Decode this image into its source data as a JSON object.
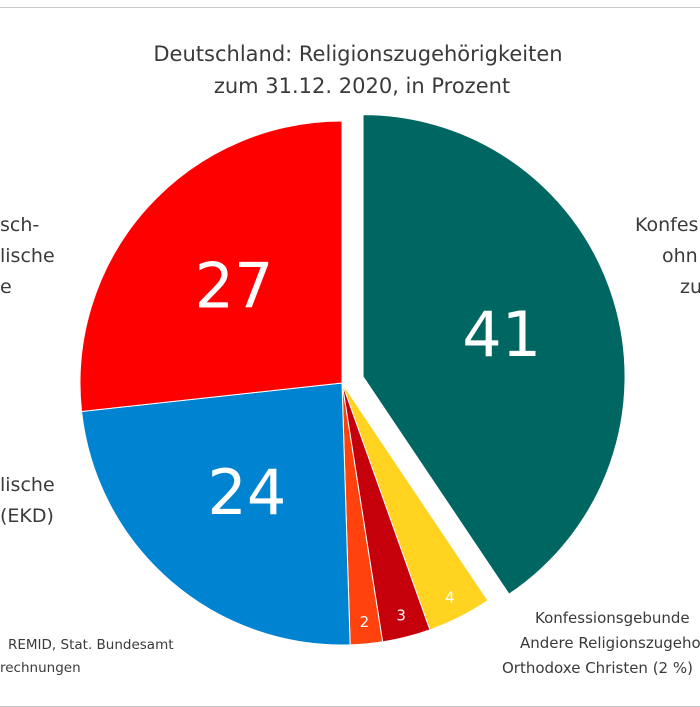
{
  "chart_data": {
    "type": "pie",
    "title": [
      "Deutschland: Religionszugehörigkeiten",
      "zum 31.12. 2020, in Prozent"
    ],
    "slices": [
      {
        "value": 41,
        "label": "41",
        "color": "#006661",
        "exploded": true
      },
      {
        "value": 4,
        "label": "4",
        "color": "#ffd320"
      },
      {
        "value": 3,
        "label": "3",
        "color": "#c5000b"
      },
      {
        "value": 2,
        "label": "2",
        "color": "#ff420e"
      },
      {
        "value": 24,
        "label": "24",
        "color": "#0084d1"
      },
      {
        "value": 27,
        "label": "27",
        "color": "#ff0000"
      }
    ],
    "outer_labels": {
      "right_top": [
        "Konfes",
        "ohn",
        "zu"
      ],
      "left_top": [
        "sch-",
        "lische",
        "e"
      ],
      "left_bottom": [
        "lische",
        "(EKD)"
      ],
      "bottom_right": [
        "Konfessionsgebunde",
        "Andere Religionszugeho",
        "Orthodoxe Christen (2 %)"
      ]
    },
    "source": [
      "REMID, Stat. Bundesamt",
      "rechnungen"
    ]
  }
}
